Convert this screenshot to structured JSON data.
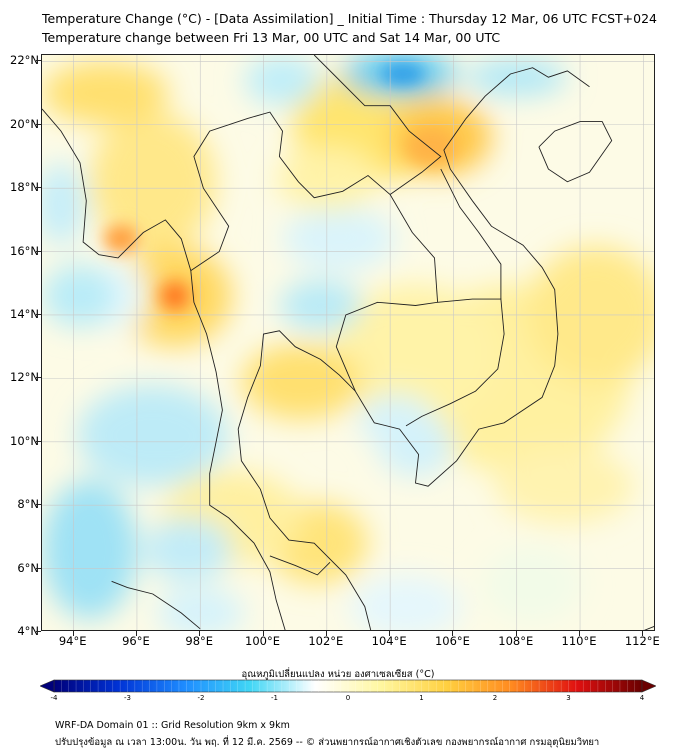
{
  "title_line1": "Temperature Change (°C) - [Data Assimilation] _ Initial Time : Thursday 12 Mar, 06 UTC FCST+024",
  "title_line2": "Temperature change between Fri 13 Mar, 00 UTC and Sat 14 Mar, 00 UTC",
  "axes": {
    "lat_labels": [
      "22°N",
      "20°N",
      "18°N",
      "16°N",
      "14°N",
      "12°N",
      "10°N",
      "8°N",
      "6°N",
      "4°N"
    ],
    "lat_values": [
      22,
      20,
      18,
      16,
      14,
      12,
      10,
      8,
      6,
      4
    ],
    "lon_labels": [
      "94°E",
      "96°E",
      "98°E",
      "100°E",
      "102°E",
      "104°E",
      "106°E",
      "108°E",
      "110°E",
      "112°E"
    ],
    "lon_values": [
      94,
      96,
      98,
      100,
      102,
      104,
      106,
      108,
      110,
      112
    ],
    "lon_range": [
      93.0,
      112.4
    ],
    "lat_range": [
      4.0,
      22.2
    ]
  },
  "colorbar": {
    "label": "อุณหภูมิเปลี่ยนแปลง หน่วย องศาเซลเซียส (°C)",
    "ticks": [
      "-4",
      "-3",
      "-2",
      "-1",
      "0",
      "1",
      "2",
      "3",
      "4"
    ],
    "range": [
      -4,
      4
    ],
    "colors": [
      "#00007a",
      "#0033d6",
      "#1e8cff",
      "#40d6f5",
      "#ffffff",
      "#fff7a0",
      "#ffd040",
      "#ff8a20",
      "#e01010",
      "#6a0000"
    ]
  },
  "footer_line1": "WRF-DA Domain 01 :: Grid Resolution 9km x 9km",
  "footer_line2": "ปรับปรุงข้อมูล ณ เวลา 13:00น. วัน พฤ. ที่ 12 มี.ค. 2569 -- © ส่วนพยากรณ์อากาศเชิงตัวเลข กองพยากรณ์อากาศ กรมอุตุนิยมวิทยา"
}
